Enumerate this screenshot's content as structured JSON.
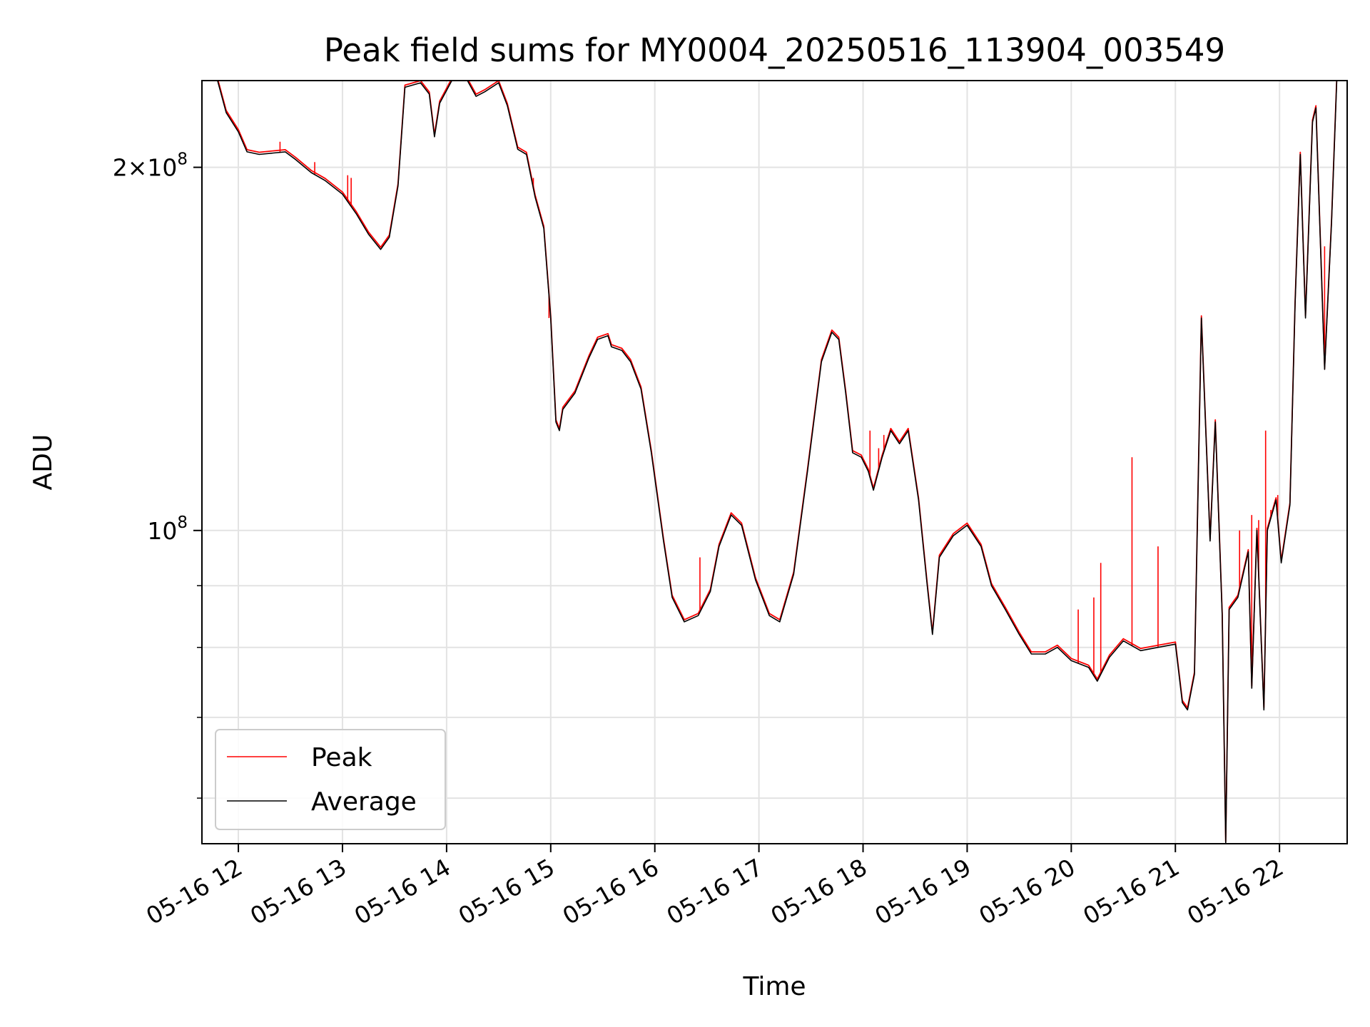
{
  "chart_data": {
    "type": "line",
    "title": "Peak field sums for MY0004_20250516_113904_003549",
    "xlabel": "Time",
    "ylabel": "ADU",
    "yscale": "log",
    "grid": true,
    "legend_position": "lower left",
    "xlim": [
      "2025-05-16 11:39",
      "2025-05-16 22:39"
    ],
    "ylim": [
      55000000,
      236000000
    ],
    "x_ticks": [
      {
        "time": "2025-05-16 12:00",
        "label": "05-16 12"
      },
      {
        "time": "2025-05-16 13:00",
        "label": "05-16 13"
      },
      {
        "time": "2025-05-16 14:00",
        "label": "05-16 14"
      },
      {
        "time": "2025-05-16 15:00",
        "label": "05-16 15"
      },
      {
        "time": "2025-05-16 16:00",
        "label": "05-16 16"
      },
      {
        "time": "2025-05-16 17:00",
        "label": "05-16 17"
      },
      {
        "time": "2025-05-16 18:00",
        "label": "05-16 18"
      },
      {
        "time": "2025-05-16 19:00",
        "label": "05-16 19"
      },
      {
        "time": "2025-05-16 20:00",
        "label": "05-16 20"
      },
      {
        "time": "2025-05-16 21:00",
        "label": "05-16 21"
      },
      {
        "time": "2025-05-16 22:00",
        "label": "05-16 22"
      }
    ],
    "y_major_ticks": [
      {
        "value": 100000000,
        "base": "10",
        "exp": "8"
      },
      {
        "value": 200000000,
        "base": "2×10",
        "exp": "8"
      }
    ],
    "y_minor_ticks": [
      60000000,
      70000000,
      80000000,
      90000000
    ],
    "series": [
      {
        "name": "Average",
        "color": "#000000",
        "points": [
          [
            "2025-05-16 11:39",
            236000000
          ],
          [
            "2025-05-16 11:48",
            236000000
          ],
          [
            "2025-05-16 11:53",
            222000000
          ],
          [
            "2025-05-16 12:00",
            214000000
          ],
          [
            "2025-05-16 12:05",
            206000000
          ],
          [
            "2025-05-16 12:12",
            205000000
          ],
          [
            "2025-05-16 12:27",
            206000000
          ],
          [
            "2025-05-16 12:33",
            203000000
          ],
          [
            "2025-05-16 12:42",
            198000000
          ],
          [
            "2025-05-16 12:50",
            195000000
          ],
          [
            "2025-05-16 13:00",
            190000000
          ],
          [
            "2025-05-16 13:08",
            183000000
          ],
          [
            "2025-05-16 13:15",
            176000000
          ],
          [
            "2025-05-16 13:22",
            171000000
          ],
          [
            "2025-05-16 13:27",
            175000000
          ],
          [
            "2025-05-16 13:32",
            193000000
          ],
          [
            "2025-05-16 13:36",
            233000000
          ],
          [
            "2025-05-16 13:45",
            235000000
          ],
          [
            "2025-05-16 13:50",
            230000000
          ],
          [
            "2025-05-16 13:53",
            212000000
          ],
          [
            "2025-05-16 13:56",
            226000000
          ],
          [
            "2025-05-16 14:03",
            236000000
          ],
          [
            "2025-05-16 14:12",
            236000000
          ],
          [
            "2025-05-16 14:17",
            229000000
          ],
          [
            "2025-05-16 14:22",
            231000000
          ],
          [
            "2025-05-16 14:30",
            235000000
          ],
          [
            "2025-05-16 14:35",
            225000000
          ],
          [
            "2025-05-16 14:41",
            207000000
          ],
          [
            "2025-05-16 14:46",
            205000000
          ],
          [
            "2025-05-16 14:51",
            189000000
          ],
          [
            "2025-05-16 14:56",
            178000000
          ],
          [
            "2025-05-16 15:00",
            150000000
          ],
          [
            "2025-05-16 15:03",
            123000000
          ],
          [
            "2025-05-16 15:05",
            121000000
          ],
          [
            "2025-05-16 15:07",
            126000000
          ],
          [
            "2025-05-16 15:14",
            130000000
          ],
          [
            "2025-05-16 15:22",
            139000000
          ],
          [
            "2025-05-16 15:27",
            144000000
          ],
          [
            "2025-05-16 15:33",
            145000000
          ],
          [
            "2025-05-16 15:35",
            142000000
          ],
          [
            "2025-05-16 15:41",
            141000000
          ],
          [
            "2025-05-16 15:46",
            138000000
          ],
          [
            "2025-05-16 15:52",
            131000000
          ],
          [
            "2025-05-16 15:58",
            116000000
          ],
          [
            "2025-05-16 16:05",
            98000000
          ],
          [
            "2025-05-16 16:10",
            88000000
          ],
          [
            "2025-05-16 16:17",
            84000000
          ],
          [
            "2025-05-16 16:25",
            85000000
          ],
          [
            "2025-05-16 16:32",
            89000000
          ],
          [
            "2025-05-16 16:37",
            97000000
          ],
          [
            "2025-05-16 16:44",
            103000000
          ],
          [
            "2025-05-16 16:50",
            101000000
          ],
          [
            "2025-05-16 16:58",
            91000000
          ],
          [
            "2025-05-16 17:06",
            85000000
          ],
          [
            "2025-05-16 17:12",
            84000000
          ],
          [
            "2025-05-16 17:20",
            92000000
          ],
          [
            "2025-05-16 17:28",
            112000000
          ],
          [
            "2025-05-16 17:36",
            138000000
          ],
          [
            "2025-05-16 17:42",
            146000000
          ],
          [
            "2025-05-16 17:46",
            144000000
          ],
          [
            "2025-05-16 17:50",
            130000000
          ],
          [
            "2025-05-16 17:54",
            116000000
          ],
          [
            "2025-05-16 17:59",
            115000000
          ],
          [
            "2025-05-16 18:03",
            112000000
          ],
          [
            "2025-05-16 18:06",
            108000000
          ],
          [
            "2025-05-16 18:11",
            115000000
          ],
          [
            "2025-05-16 18:16",
            121000000
          ],
          [
            "2025-05-16 18:21",
            118000000
          ],
          [
            "2025-05-16 18:26",
            121000000
          ],
          [
            "2025-05-16 18:32",
            106000000
          ],
          [
            "2025-05-16 18:37",
            90000000
          ],
          [
            "2025-05-16 18:40",
            82000000
          ],
          [
            "2025-05-16 18:44",
            95000000
          ],
          [
            "2025-05-16 18:52",
            99000000
          ],
          [
            "2025-05-16 19:00",
            101000000
          ],
          [
            "2025-05-16 19:08",
            97000000
          ],
          [
            "2025-05-16 19:14",
            90000000
          ],
          [
            "2025-05-16 19:22",
            86000000
          ],
          [
            "2025-05-16 19:30",
            82000000
          ],
          [
            "2025-05-16 19:37",
            79000000
          ],
          [
            "2025-05-16 19:45",
            79000000
          ],
          [
            "2025-05-16 19:52",
            80000000
          ],
          [
            "2025-05-16 20:00",
            78000000
          ],
          [
            "2025-05-16 20:10",
            77000000
          ],
          [
            "2025-05-16 20:15",
            75000000
          ],
          [
            "2025-05-16 20:22",
            78500000
          ],
          [
            "2025-05-16 20:30",
            81000000
          ],
          [
            "2025-05-16 20:40",
            79500000
          ],
          [
            "2025-05-16 20:50",
            80000000
          ],
          [
            "2025-05-16 21:00",
            80500000
          ],
          [
            "2025-05-16 21:04",
            72000000
          ],
          [
            "2025-05-16 21:07",
            71000000
          ],
          [
            "2025-05-16 21:11",
            76000000
          ],
          [
            "2025-05-16 21:15",
            150000000
          ],
          [
            "2025-05-16 21:20",
            98000000
          ],
          [
            "2025-05-16 21:23",
            123000000
          ],
          [
            "2025-05-16 21:27",
            85000000
          ],
          [
            "2025-05-16 21:29",
            55000000
          ],
          [
            "2025-05-16 21:31",
            86000000
          ],
          [
            "2025-05-16 21:36",
            88000000
          ],
          [
            "2025-05-16 21:42",
            96000000
          ],
          [
            "2025-05-16 21:44",
            74000000
          ],
          [
            "2025-05-16 21:47",
            100000000
          ],
          [
            "2025-05-16 21:51",
            71000000
          ],
          [
            "2025-05-16 21:53",
            100000000
          ],
          [
            "2025-05-16 21:58",
            106000000
          ],
          [
            "2025-05-16 22:01",
            94000000
          ],
          [
            "2025-05-16 22:06",
            105000000
          ],
          [
            "2025-05-16 22:09",
            154000000
          ],
          [
            "2025-05-16 22:12",
            205000000
          ],
          [
            "2025-05-16 22:15",
            150000000
          ],
          [
            "2025-05-16 22:19",
            218000000
          ],
          [
            "2025-05-16 22:21",
            224000000
          ],
          [
            "2025-05-16 22:26",
            136000000
          ],
          [
            "2025-05-16 22:30",
            180000000
          ],
          [
            "2025-05-16 22:33",
            236000000
          ],
          [
            "2025-05-16 22:39",
            236000000
          ]
        ]
      },
      {
        "name": "Peak",
        "color": "#ff0000",
        "points_note_omitted": null,
        "spikes": [
          [
            "2025-05-16 12:24",
            210000000
          ],
          [
            "2025-05-16 12:44",
            202000000
          ],
          [
            "2025-05-16 13:03",
            197000000
          ],
          [
            "2025-05-16 13:05",
            196000000
          ],
          [
            "2025-05-16 14:50",
            196000000
          ],
          [
            "2025-05-16 14:59",
            150000000
          ],
          [
            "2025-05-16 16:26",
            95000000
          ],
          [
            "2025-05-16 18:04",
            121000000
          ],
          [
            "2025-05-16 18:09",
            117000000
          ],
          [
            "2025-05-16 18:12",
            120000000
          ],
          [
            "2025-05-16 20:04",
            86000000
          ],
          [
            "2025-05-16 20:13",
            88000000
          ],
          [
            "2025-05-16 20:17",
            94000000
          ],
          [
            "2025-05-16 20:35",
            115000000
          ],
          [
            "2025-05-16 20:50",
            97000000
          ],
          [
            "2025-05-16 21:37",
            100000000
          ],
          [
            "2025-05-16 21:44",
            103000000
          ],
          [
            "2025-05-16 21:48",
            102000000
          ],
          [
            "2025-05-16 21:52",
            121000000
          ],
          [
            "2025-05-16 21:55",
            104000000
          ],
          [
            "2025-05-16 21:59",
            107000000
          ],
          [
            "2025-05-16 22:26",
            172000000
          ]
        ]
      }
    ]
  }
}
